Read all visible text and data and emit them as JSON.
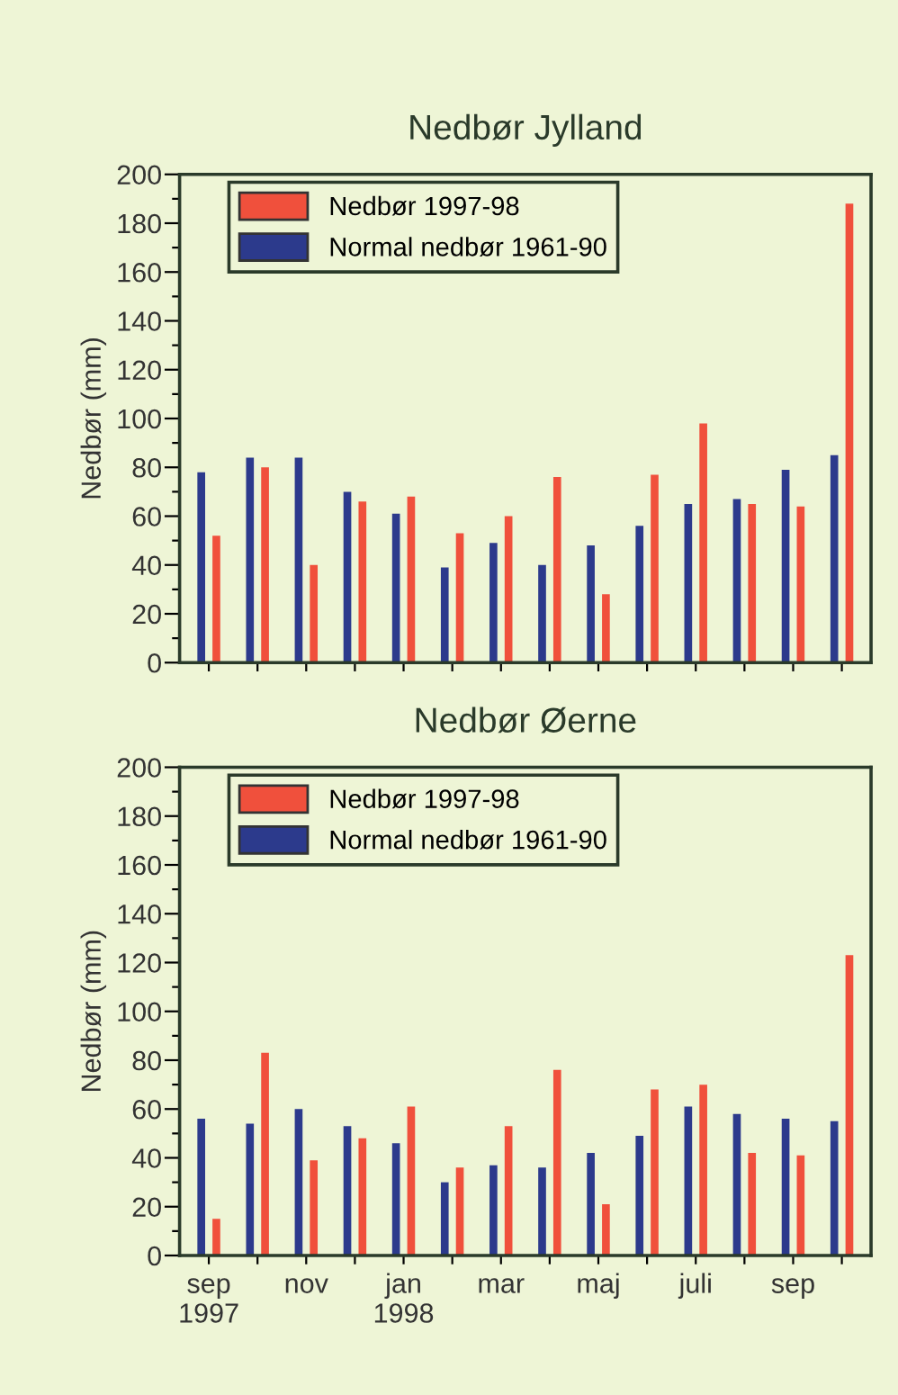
{
  "chart_data": [
    {
      "type": "bar",
      "title": "Nedbør Jylland",
      "ylabel": "Nedbør (mm)",
      "categories": [
        null,
        null,
        null,
        null,
        null,
        null,
        null,
        null,
        null,
        null,
        null,
        null,
        null,
        null
      ],
      "series": [
        {
          "name": "Normal nedbør 1961-90",
          "color": "#2c3a8c",
          "values": [
            78,
            84,
            84,
            70,
            61,
            39,
            49,
            40,
            48,
            56,
            65,
            67,
            79,
            85
          ]
        },
        {
          "name": "Nedbør 1997-98",
          "color": "#f0503c",
          "values": [
            52,
            80,
            40,
            66,
            68,
            53,
            60,
            76,
            28,
            77,
            98,
            65,
            64,
            188
          ]
        }
      ],
      "ylim": [
        0,
        200
      ],
      "yticks": [
        0,
        {
          "value": 10,
          "label": null
        },
        20,
        {
          "value": 30,
          "label": null
        },
        40,
        {
          "value": 50,
          "label": null
        },
        60,
        {
          "value": 70,
          "label": null
        },
        80,
        {
          "value": 90,
          "label": null
        },
        100,
        {
          "value": 110,
          "label": null
        },
        120,
        {
          "value": 130,
          "label": null
        },
        140,
        {
          "value": 150,
          "label": null
        },
        160,
        {
          "value": 170,
          "label": null
        },
        180,
        {
          "value": 190,
          "label": null
        },
        200
      ],
      "legend": "top left",
      "grid": false
    },
    {
      "type": "bar",
      "title": "Nedbør Øerne",
      "ylabel": "Nedbør (mm)",
      "categories": [
        "sep\n1997",
        null,
        "nov",
        null,
        "jan\n1998",
        null,
        "mar",
        null,
        "maj",
        null,
        "juli",
        null,
        "sep",
        null
      ],
      "series": [
        {
          "name": "Normal nedbør 1961-90",
          "color": "#2c3a8c",
          "values": [
            56,
            54,
            60,
            53,
            46,
            30,
            37,
            36,
            42,
            49,
            61,
            58,
            56,
            55
          ]
        },
        {
          "name": "Nedbør 1997-98",
          "color": "#f0503c",
          "values": [
            15,
            83,
            39,
            48,
            61,
            36,
            53,
            76,
            21,
            68,
            70,
            42,
            41,
            123
          ]
        }
      ],
      "ylim": [
        0,
        200
      ],
      "yticks": [
        0,
        {
          "value": 10,
          "label": null
        },
        20,
        {
          "value": 30,
          "label": null
        },
        40,
        {
          "value": 50,
          "label": null
        },
        60,
        {
          "value": 70,
          "label": null
        },
        80,
        {
          "value": 90,
          "label": null
        },
        100,
        {
          "value": 110,
          "label": null
        },
        120,
        {
          "value": 130,
          "label": null
        },
        140,
        {
          "value": 150,
          "label": null
        },
        160,
        {
          "value": 170,
          "label": null
        },
        180,
        {
          "value": 190,
          "label": null
        },
        200
      ],
      "legend": "top left",
      "grid": false
    }
  ]
}
